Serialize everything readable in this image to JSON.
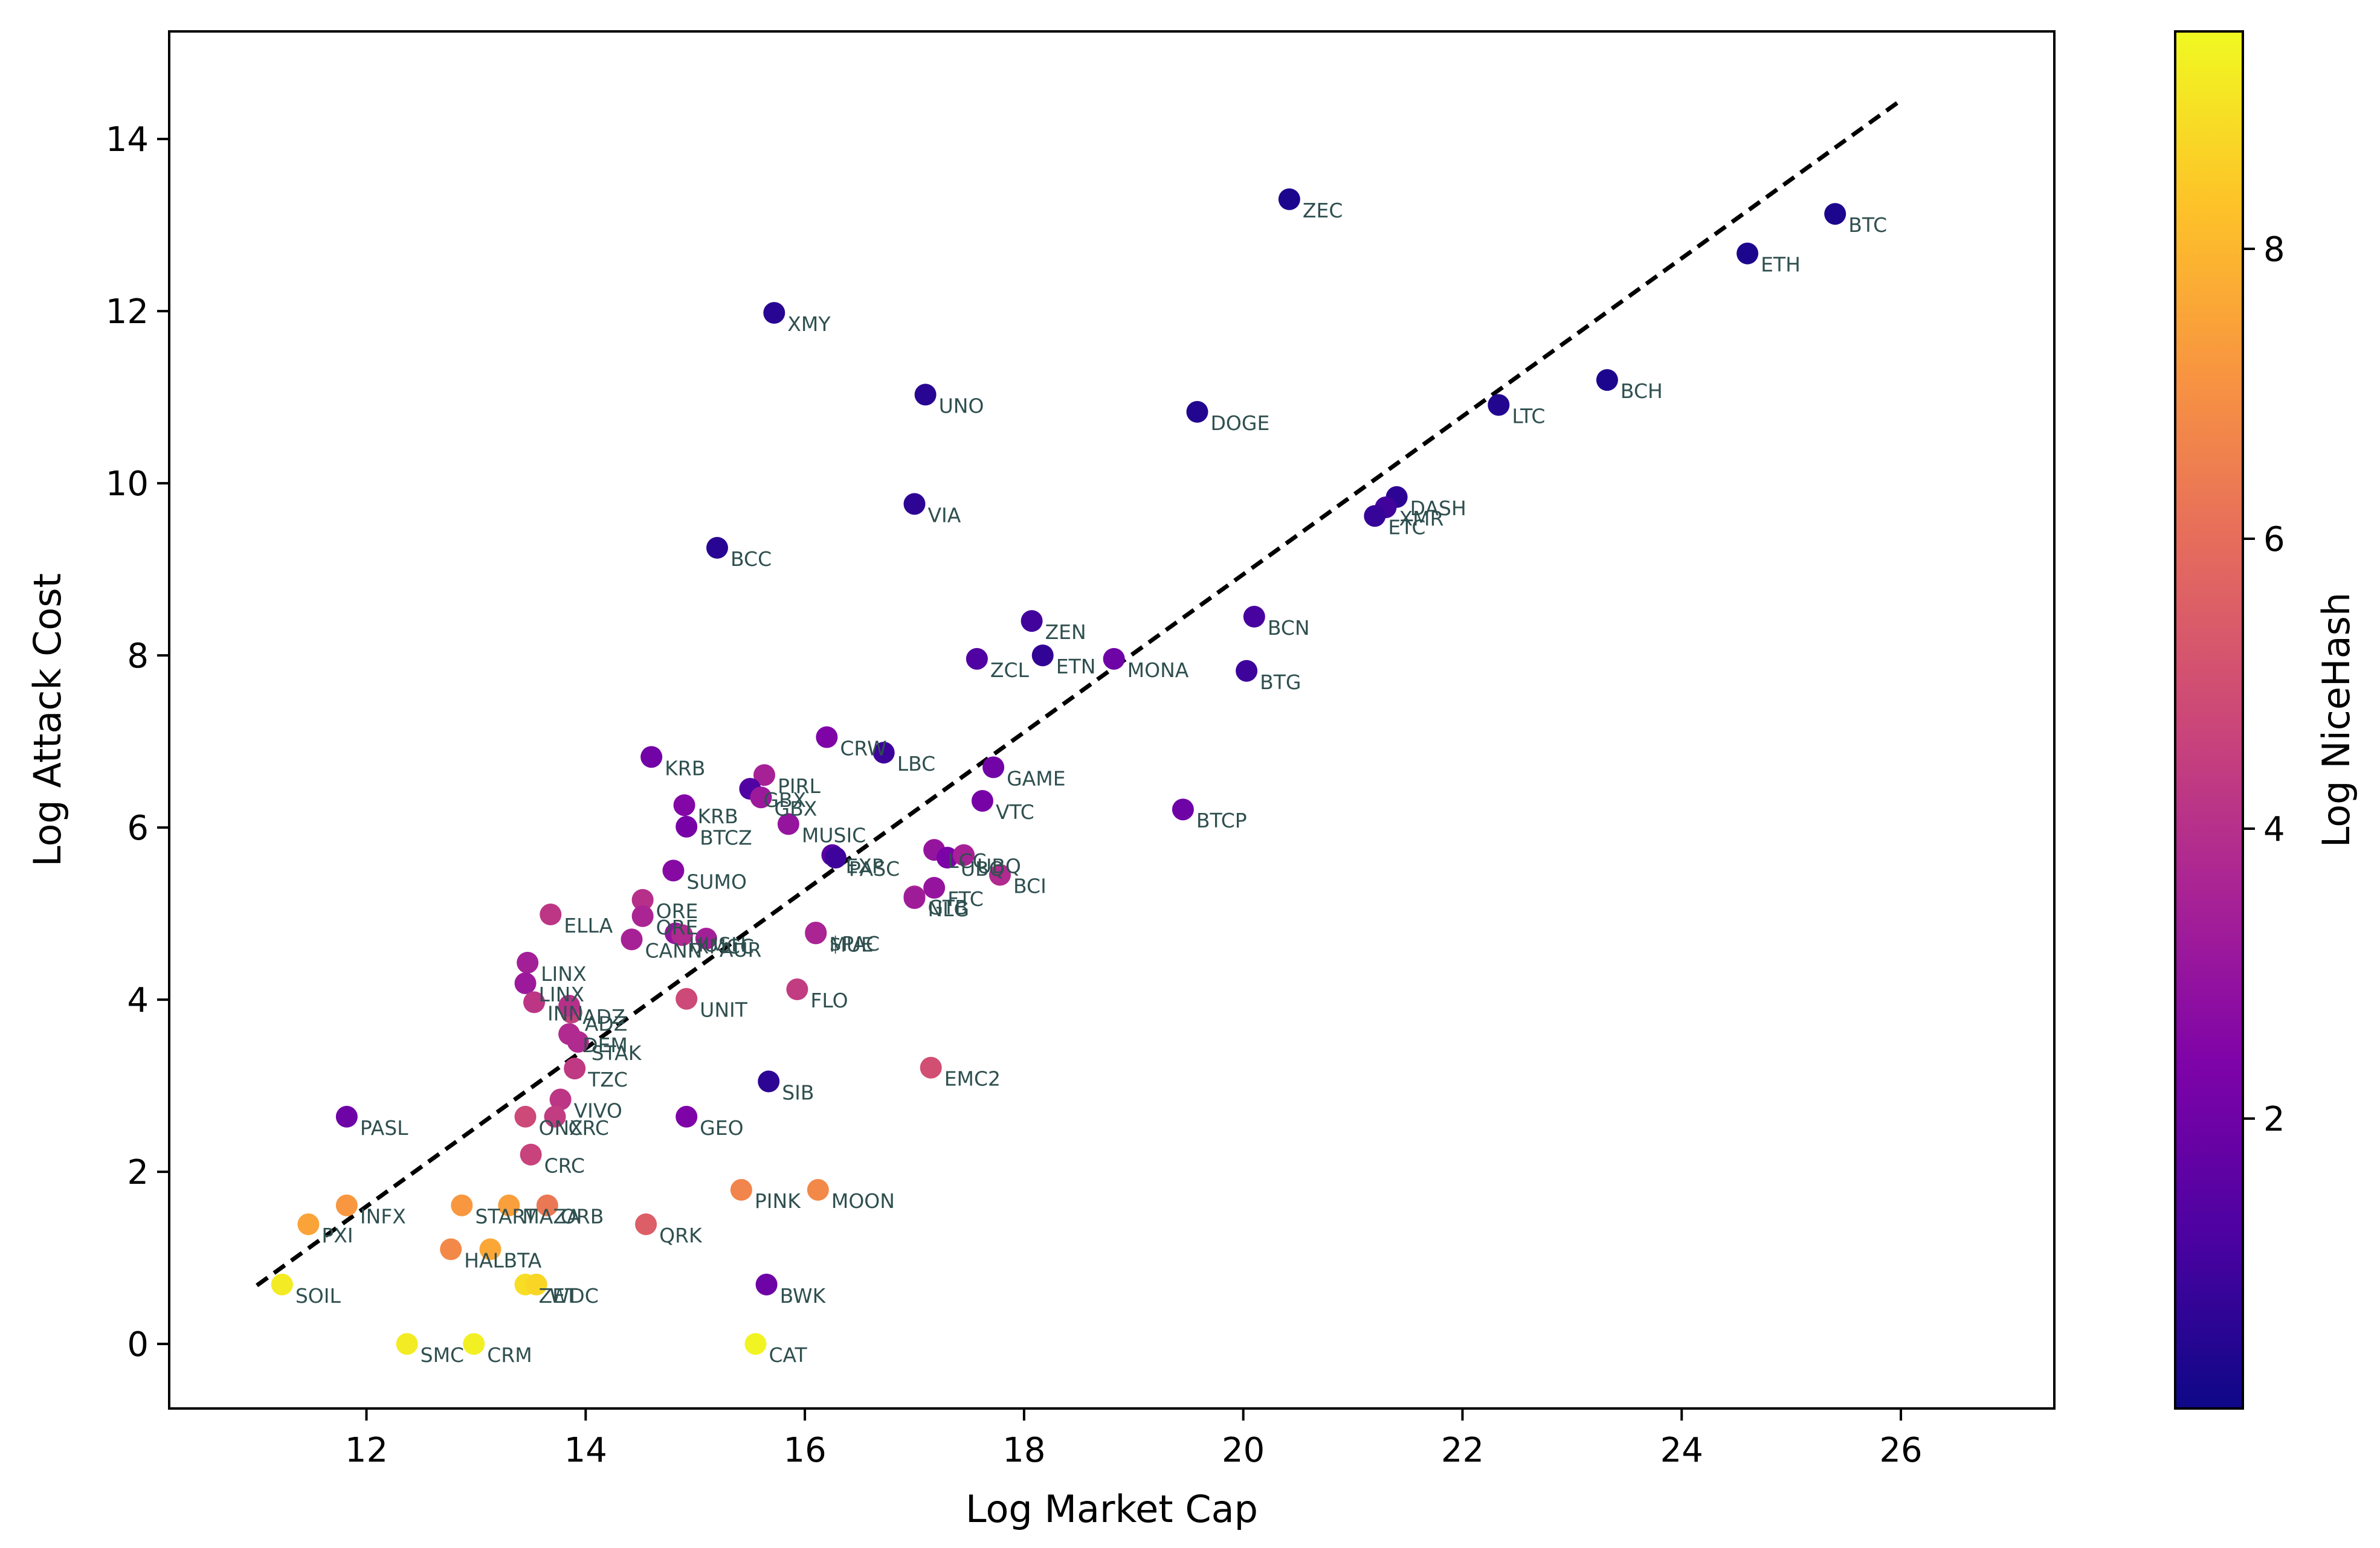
{
  "chart_data": {
    "type": "scatter",
    "xlabel": "Log Market Cap",
    "ylabel": "Log Attack Cost",
    "xlim": [
      10.2,
      27.4
    ],
    "ylim": [
      -0.75,
      15.25
    ],
    "xticks": [
      12,
      14,
      16,
      18,
      20,
      22,
      24,
      26
    ],
    "yticks": [
      0,
      2,
      4,
      6,
      8,
      10,
      12,
      14
    ],
    "grid": false,
    "fit_line": {
      "style": "dashed",
      "color": "#000000",
      "x": [
        11.0,
        26.0
      ],
      "y": [
        0.68,
        14.45
      ]
    },
    "colorbar": {
      "label": "Log NiceHash",
      "colormap": "plasma",
      "range": [
        0.0,
        9.5
      ],
      "ticks": [
        2,
        4,
        6,
        8
      ]
    },
    "points": [
      {
        "label": "BTC",
        "x": 25.4,
        "y": 13.13,
        "c": 0.3
      },
      {
        "label": "ETH",
        "x": 24.6,
        "y": 12.67,
        "c": 0.3
      },
      {
        "label": "ZEC",
        "x": 20.42,
        "y": 13.3,
        "c": 0.3
      },
      {
        "label": "BCH",
        "x": 23.32,
        "y": 11.2,
        "c": 0.3
      },
      {
        "label": "LTC",
        "x": 22.33,
        "y": 10.91,
        "c": 0.4
      },
      {
        "label": "DOGE",
        "x": 19.58,
        "y": 10.83,
        "c": 0.4
      },
      {
        "label": "XMY",
        "x": 15.72,
        "y": 11.98,
        "c": 0.5
      },
      {
        "label": "UNO",
        "x": 17.1,
        "y": 11.03,
        "c": 0.5
      },
      {
        "label": "VIA",
        "x": 17.0,
        "y": 9.76,
        "c": 0.6
      },
      {
        "label": "BCC",
        "x": 15.2,
        "y": 9.25,
        "c": 0.5
      },
      {
        "label": "DASH",
        "x": 21.4,
        "y": 9.84,
        "c": 0.6
      },
      {
        "label": "XMR",
        "x": 21.3,
        "y": 9.72,
        "c": 1.0
      },
      {
        "label": "ETC",
        "x": 21.2,
        "y": 9.62,
        "c": 0.8
      },
      {
        "label": "ZEN",
        "x": 18.07,
        "y": 8.4,
        "c": 1.0
      },
      {
        "label": "BCN",
        "x": 20.1,
        "y": 8.45,
        "c": 1.1
      },
      {
        "label": "ZCL",
        "x": 17.57,
        "y": 7.96,
        "c": 1.3
      },
      {
        "label": "ETN",
        "x": 18.17,
        "y": 8.0,
        "c": 0.7
      },
      {
        "label": "MONA",
        "x": 18.82,
        "y": 7.96,
        "c": 2.0
      },
      {
        "label": "BTG",
        "x": 20.03,
        "y": 7.82,
        "c": 0.9
      },
      {
        "label": "CRW",
        "x": 16.2,
        "y": 7.05,
        "c": 2.4
      },
      {
        "label": "LBC",
        "x": 16.72,
        "y": 6.87,
        "c": 0.9
      },
      {
        "label": "GAME",
        "x": 17.72,
        "y": 6.7,
        "c": 2.1
      },
      {
        "label": "KRB",
        "x": 14.6,
        "y": 6.82,
        "c": 2.1
      },
      {
        "label": "KRB",
        "x": 14.9,
        "y": 6.26,
        "c": 2.5
      },
      {
        "label": "PIRL",
        "x": 15.63,
        "y": 6.61,
        "c": 3.5
      },
      {
        "label": "GBX",
        "x": 15.5,
        "y": 6.45,
        "c": 1.3
      },
      {
        "label": "GBX",
        "x": 15.6,
        "y": 6.35,
        "c": 3.2
      },
      {
        "label": "VTC",
        "x": 17.62,
        "y": 6.31,
        "c": 2.2
      },
      {
        "label": "BTCP",
        "x": 19.45,
        "y": 6.21,
        "c": 2.0
      },
      {
        "label": "BTCZ",
        "x": 14.92,
        "y": 6.01,
        "c": 2.2
      },
      {
        "label": "MUSIC",
        "x": 15.85,
        "y": 6.04,
        "c": 3.0
      },
      {
        "label": "SUMO",
        "x": 14.8,
        "y": 5.5,
        "c": 2.6
      },
      {
        "label": "EXP",
        "x": 16.25,
        "y": 5.68,
        "c": 1.5
      },
      {
        "label": "PASC",
        "x": 16.28,
        "y": 5.65,
        "c": 0.9
      },
      {
        "label": "LCC",
        "x": 17.18,
        "y": 5.74,
        "c": 3.0
      },
      {
        "label": "UBQ",
        "x": 17.3,
        "y": 5.65,
        "c": 2.3
      },
      {
        "label": "UBQ",
        "x": 17.45,
        "y": 5.68,
        "c": 3.5
      },
      {
        "label": "FTC",
        "x": 17.18,
        "y": 5.3,
        "c": 3.0
      },
      {
        "label": "GTB",
        "x": 17.0,
        "y": 5.2,
        "c": 3.6
      },
      {
        "label": "BCI",
        "x": 17.78,
        "y": 5.45,
        "c": 3.8
      },
      {
        "label": "$PAC",
        "x": 16.1,
        "y": 4.78,
        "c": 3.5
      },
      {
        "label": "NLG",
        "x": 17.0,
        "y": 5.18,
        "c": 3.3
      },
      {
        "label": "MUE",
        "x": 16.1,
        "y": 4.77,
        "c": 3.6
      },
      {
        "label": "ORE",
        "x": 14.52,
        "y": 5.16,
        "c": 4.0
      },
      {
        "label": "ORE",
        "x": 14.52,
        "y": 4.97,
        "c": 3.6
      },
      {
        "label": "ELLA",
        "x": 13.68,
        "y": 4.99,
        "c": 4.2
      },
      {
        "label": "HUSH",
        "x": 14.82,
        "y": 4.77,
        "c": 3.0
      },
      {
        "label": "AUR",
        "x": 15.1,
        "y": 4.71,
        "c": 3.4
      },
      {
        "label": "CANN",
        "x": 14.42,
        "y": 4.7,
        "c": 3.5
      },
      {
        "label": "XMCC",
        "x": 14.88,
        "y": 4.75,
        "c": 3.8
      },
      {
        "label": "LINX",
        "x": 13.47,
        "y": 4.43,
        "c": 3.4
      },
      {
        "label": "LINX",
        "x": 13.45,
        "y": 4.19,
        "c": 3.2
      },
      {
        "label": "INN",
        "x": 13.53,
        "y": 3.97,
        "c": 4.2
      },
      {
        "label": "ADZ",
        "x": 13.87,
        "y": 3.85,
        "c": 4.5
      },
      {
        "label": "ADZ",
        "x": 13.85,
        "y": 3.93,
        "c": 4.0
      },
      {
        "label": "DEM",
        "x": 13.85,
        "y": 3.6,
        "c": 3.8
      },
      {
        "label": "UNIT",
        "x": 14.92,
        "y": 4.01,
        "c": 4.8
      },
      {
        "label": "FLO",
        "x": 15.93,
        "y": 4.12,
        "c": 4.4
      },
      {
        "label": "STAK",
        "x": 13.93,
        "y": 3.51,
        "c": 3.8
      },
      {
        "label": "TZC",
        "x": 13.9,
        "y": 3.2,
        "c": 4.3
      },
      {
        "label": "EMC2",
        "x": 17.15,
        "y": 3.21,
        "c": 5.0
      },
      {
        "label": "SIB",
        "x": 15.67,
        "y": 3.05,
        "c": 0.6
      },
      {
        "label": "VIVO",
        "x": 13.77,
        "y": 2.84,
        "c": 4.2
      },
      {
        "label": "ONX",
        "x": 13.45,
        "y": 2.64,
        "c": 4.8
      },
      {
        "label": "CRC",
        "x": 13.72,
        "y": 2.64,
        "c": 4.4
      },
      {
        "label": "CRC",
        "x": 13.5,
        "y": 2.2,
        "c": 4.6
      },
      {
        "label": "GEO",
        "x": 14.92,
        "y": 2.64,
        "c": 2.4
      },
      {
        "label": "PASL",
        "x": 11.82,
        "y": 2.64,
        "c": 2.0
      },
      {
        "label": "INFX",
        "x": 11.82,
        "y": 1.61,
        "c": 7.2
      },
      {
        "label": "PXI",
        "x": 11.47,
        "y": 1.39,
        "c": 7.5
      },
      {
        "label": "START",
        "x": 12.87,
        "y": 1.61,
        "c": 7.2
      },
      {
        "label": "MAZA",
        "x": 13.3,
        "y": 1.61,
        "c": 7.4
      },
      {
        "label": "ORB",
        "x": 13.65,
        "y": 1.61,
        "c": 6.3
      },
      {
        "label": "PINK",
        "x": 15.42,
        "y": 1.79,
        "c": 6.7
      },
      {
        "label": "MOON",
        "x": 16.12,
        "y": 1.79,
        "c": 6.8
      },
      {
        "label": "QRK",
        "x": 14.55,
        "y": 1.39,
        "c": 5.5
      },
      {
        "label": "HAL",
        "x": 12.77,
        "y": 1.1,
        "c": 6.8
      },
      {
        "label": "BTA",
        "x": 13.13,
        "y": 1.1,
        "c": 7.6
      },
      {
        "label": "ZET",
        "x": 13.45,
        "y": 0.69,
        "c": 8.9
      },
      {
        "label": "WDC",
        "x": 13.55,
        "y": 0.69,
        "c": 8.7
      },
      {
        "label": "SOIL",
        "x": 11.23,
        "y": 0.69,
        "c": 9.2
      },
      {
        "label": "BWK",
        "x": 15.65,
        "y": 0.69,
        "c": 2.0
      },
      {
        "label": "SMC",
        "x": 12.37,
        "y": 0.0,
        "c": 9.2
      },
      {
        "label": "CRM",
        "x": 12.98,
        "y": 0.0,
        "c": 9.3
      },
      {
        "label": "CAT",
        "x": 15.55,
        "y": 0.0,
        "c": 9.4
      }
    ]
  }
}
